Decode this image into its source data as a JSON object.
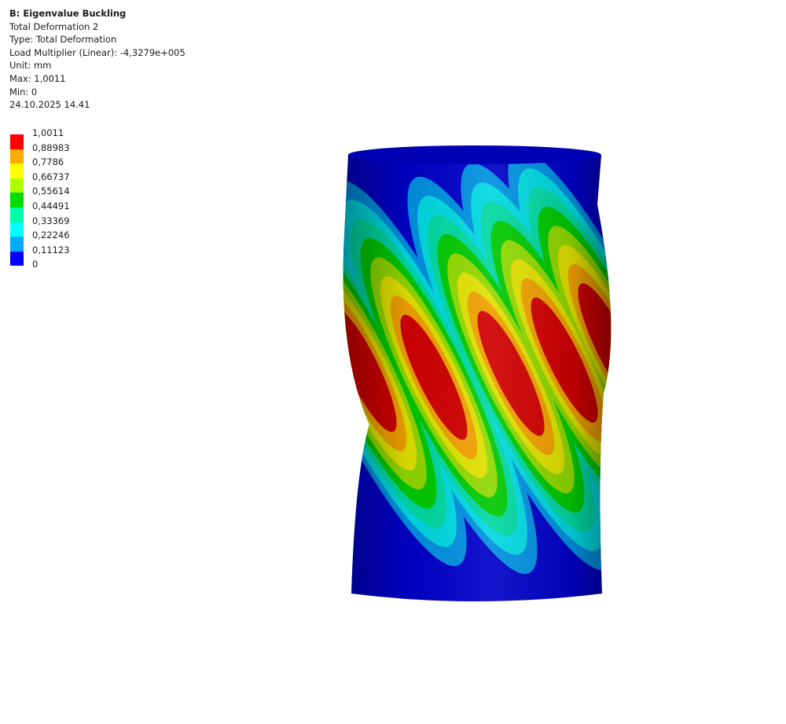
{
  "header": {
    "title": "B: Eigenvalue Buckling",
    "lines": [
      "Total Deformation 2",
      "Type: Total Deformation",
      "Load Multiplier (Linear): -4,3279e+005",
      "Unit: mm",
      "Max: 1,0011",
      "Min: 0",
      "24.10.2025 14.41"
    ]
  },
  "legend": {
    "labels": [
      "1,0011",
      "0,88983",
      "0,7786",
      "0,66737",
      "0,55614",
      "0,44491",
      "0,33369",
      "0,22246",
      "0,11123",
      "0"
    ],
    "colors": [
      "#ff0000",
      "#ffaa00",
      "#ffff00",
      "#aaff00",
      "#00dd00",
      "#00ffaa",
      "#00ffff",
      "#00aaff",
      "#0000ff"
    ]
  },
  "model": {
    "base_color": "#0000c8",
    "contour_colors": [
      "#0090e0",
      "#00d8e0",
      "#00d8a0",
      "#00c800",
      "#90d800",
      "#e0e000",
      "#f0a000",
      "#d00000"
    ]
  }
}
